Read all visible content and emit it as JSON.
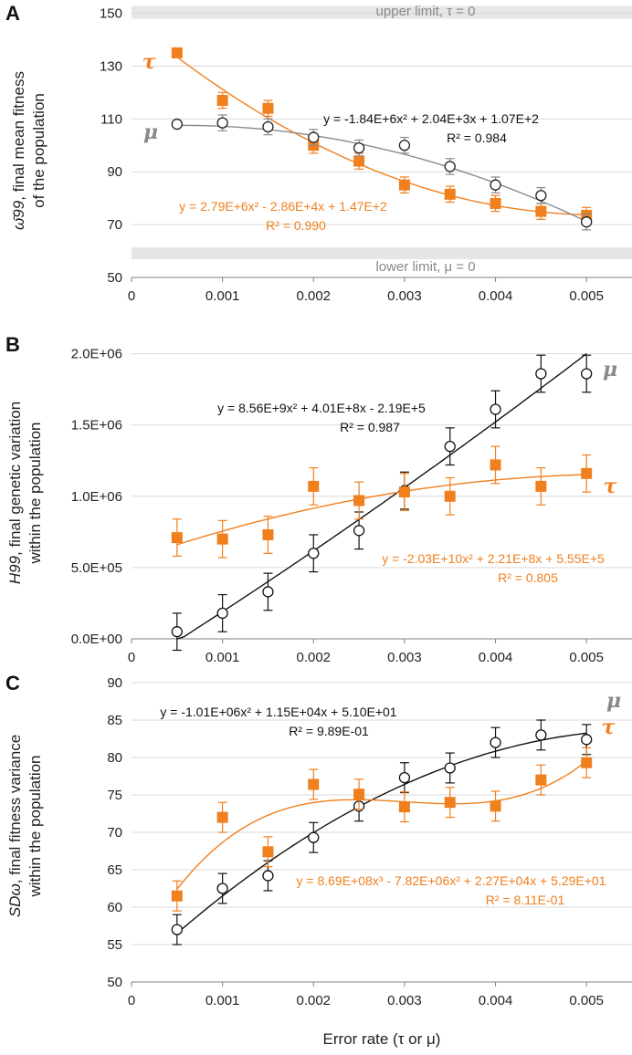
{
  "colors": {
    "tau": "#f07f1e",
    "mu_black": "#111111",
    "mu_grey": "#8a8a8a",
    "limit_band": "#e6e6e6"
  },
  "xlabel": "Error rate (τ or μ)",
  "chart_data": [
    {
      "type": "scatter",
      "panel": "A",
      "ylabel_symbol": "ω̄99",
      "ylabel_line1": ", final mean fitness",
      "ylabel_line2": "of the population",
      "xlim": [
        0,
        0.0055
      ],
      "ylim": [
        50,
        155
      ],
      "xticks": [
        0,
        0.001,
        0.002,
        0.003,
        0.004,
        0.005
      ],
      "xtick_labels": [
        "0",
        "0.001",
        "0.002",
        "0.003",
        "0.004",
        "0.005"
      ],
      "yticks": [
        50,
        70,
        90,
        110,
        130,
        150
      ],
      "ytick_labels": [
        "50",
        "70",
        "90",
        "110",
        "130",
        "150"
      ],
      "limits": [
        {
          "label": "upper limit, τ = 0",
          "y": 150
        },
        {
          "label": "lower limit, μ = 0",
          "y": 60
        }
      ],
      "series": [
        {
          "name": "τ",
          "color": "#f07f1e",
          "marker": "square",
          "x": [
            0.0005,
            0.001,
            0.0015,
            0.002,
            0.0025,
            0.003,
            0.0035,
            0.004,
            0.0045,
            0.005
          ],
          "y": [
            135,
            117,
            114,
            100,
            94,
            85,
            81.5,
            78,
            75,
            73.5
          ],
          "err": [
            0,
            3,
            3,
            3,
            3,
            3,
            3,
            3,
            3,
            3
          ],
          "fit": [
            147,
            -28600,
            2790000
          ],
          "equation": "y = 2.79E+6x² - 2.86E+4x + 1.47E+2",
          "r2": "R² = 0.990"
        },
        {
          "name": "μ",
          "color": "#8a8a8a",
          "marker": "circle",
          "x": [
            0.0005,
            0.001,
            0.0015,
            0.002,
            0.0025,
            0.003,
            0.0035,
            0.004,
            0.0045,
            0.005
          ],
          "y": [
            108,
            108.5,
            107,
            103,
            99,
            100,
            92,
            85,
            81,
            71
          ],
          "err": [
            0,
            3,
            3,
            3,
            3,
            3,
            3,
            3,
            3,
            3
          ],
          "fit": [
            107,
            2040,
            -1840000
          ],
          "equation": "y = -1.84E+6x² + 2.04E+3x + 1.07E+2",
          "r2": "R² = 0.984"
        }
      ]
    },
    {
      "type": "scatter",
      "panel": "B",
      "ylabel_symbol": "H99",
      "ylabel_line1": ", final genetic variation",
      "ylabel_line2": "within the population",
      "xlim": [
        0,
        0.0055
      ],
      "ylim": [
        0,
        2100000
      ],
      "xticks": [
        0,
        0.001,
        0.002,
        0.003,
        0.004,
        0.005
      ],
      "xtick_labels": [
        "0",
        "0.001",
        "0.002",
        "0.003",
        "0.004",
        "0.005"
      ],
      "yticks": [
        0,
        500000,
        1000000,
        1500000,
        2000000
      ],
      "ytick_labels": [
        "0.0E+00",
        "5.0E+05",
        "1.0E+06",
        "1.5E+06",
        "2.0E+06"
      ],
      "series": [
        {
          "name": "μ",
          "color": "#111111",
          "marker": "circle",
          "x": [
            0.0005,
            0.001,
            0.0015,
            0.002,
            0.0025,
            0.003,
            0.0035,
            0.004,
            0.0045,
            0.005
          ],
          "y": [
            50000,
            180000,
            330000,
            600000,
            760000,
            1040000,
            1350000,
            1610000,
            1860000,
            1860000
          ],
          "err": [
            130000,
            130000,
            130000,
            130000,
            130000,
            130000,
            130000,
            130000,
            130000,
            130000
          ],
          "fit": [
            -219000,
            401000000,
            8560000000
          ],
          "equation": "y = 8.56E+9x² + 4.01E+8x - 2.19E+5",
          "r2": "R² = 0.987"
        },
        {
          "name": "τ",
          "color": "#f07f1e",
          "marker": "square",
          "x": [
            0.0005,
            0.001,
            0.0015,
            0.002,
            0.0025,
            0.003,
            0.0035,
            0.004,
            0.0045,
            0.005
          ],
          "y": [
            710000,
            700000,
            730000,
            1070000,
            970000,
            1030000,
            1000000,
            1220000,
            1070000,
            1160000
          ],
          "err": [
            130000,
            130000,
            130000,
            130000,
            130000,
            130000,
            130000,
            130000,
            130000,
            130000
          ],
          "fit": [
            555000,
            221000000,
            -20300000000
          ],
          "equation": "y = -2.03E+10x² + 2.21E+8x + 5.55E+5",
          "r2": "R² = 0.805"
        }
      ]
    },
    {
      "type": "scatter",
      "panel": "C",
      "ylabel_symbol": "SDω",
      "ylabel_line1": ", final fitness variance",
      "ylabel_line2": "within the population",
      "xlim": [
        0,
        0.0055
      ],
      "ylim": [
        50,
        90
      ],
      "xticks": [
        0,
        0.001,
        0.002,
        0.003,
        0.004,
        0.005
      ],
      "xtick_labels": [
        "0",
        "0.001",
        "0.002",
        "0.003",
        "0.004",
        "0.005"
      ],
      "yticks": [
        50,
        55,
        60,
        65,
        70,
        75,
        80,
        85,
        90
      ],
      "ytick_labels": [
        "50",
        "55",
        "60",
        "65",
        "70",
        "75",
        "80",
        "85",
        "90"
      ],
      "series": [
        {
          "name": "μ",
          "color": "#111111",
          "marker": "circle",
          "x": [
            0.0005,
            0.001,
            0.0015,
            0.002,
            0.0025,
            0.003,
            0.0035,
            0.004,
            0.0045,
            0.005
          ],
          "y": [
            57,
            62.5,
            64.2,
            69.3,
            73.5,
            77.3,
            78.6,
            82,
            83,
            82.4
          ],
          "err": [
            2,
            2,
            2,
            2,
            2,
            2,
            2,
            2,
            2,
            2
          ],
          "fit": [
            51,
            11500,
            -1010000
          ],
          "equation": "y = -1.01E+06x² + 1.15E+04x + 5.10E+01",
          "r2": "R² = 9.89E-01"
        },
        {
          "name": "τ",
          "color": "#f07f1e",
          "marker": "square",
          "x": [
            0.0005,
            0.001,
            0.0015,
            0.002,
            0.0025,
            0.003,
            0.0035,
            0.004,
            0.0045,
            0.005
          ],
          "y": [
            61.5,
            72,
            67.4,
            76.4,
            75.1,
            73.4,
            74,
            73.5,
            77,
            79.3
          ],
          "err": [
            2,
            2,
            2,
            2,
            2,
            2,
            2,
            2,
            2,
            2
          ],
          "fit": [
            52.9,
            22700,
            -7820000,
            869000000
          ],
          "equation": "y = 8.69E+08x³ - 7.82E+06x² + 2.27E+04x + 5.29E+01",
          "r2": "R² = 8.11E-01"
        }
      ]
    }
  ]
}
